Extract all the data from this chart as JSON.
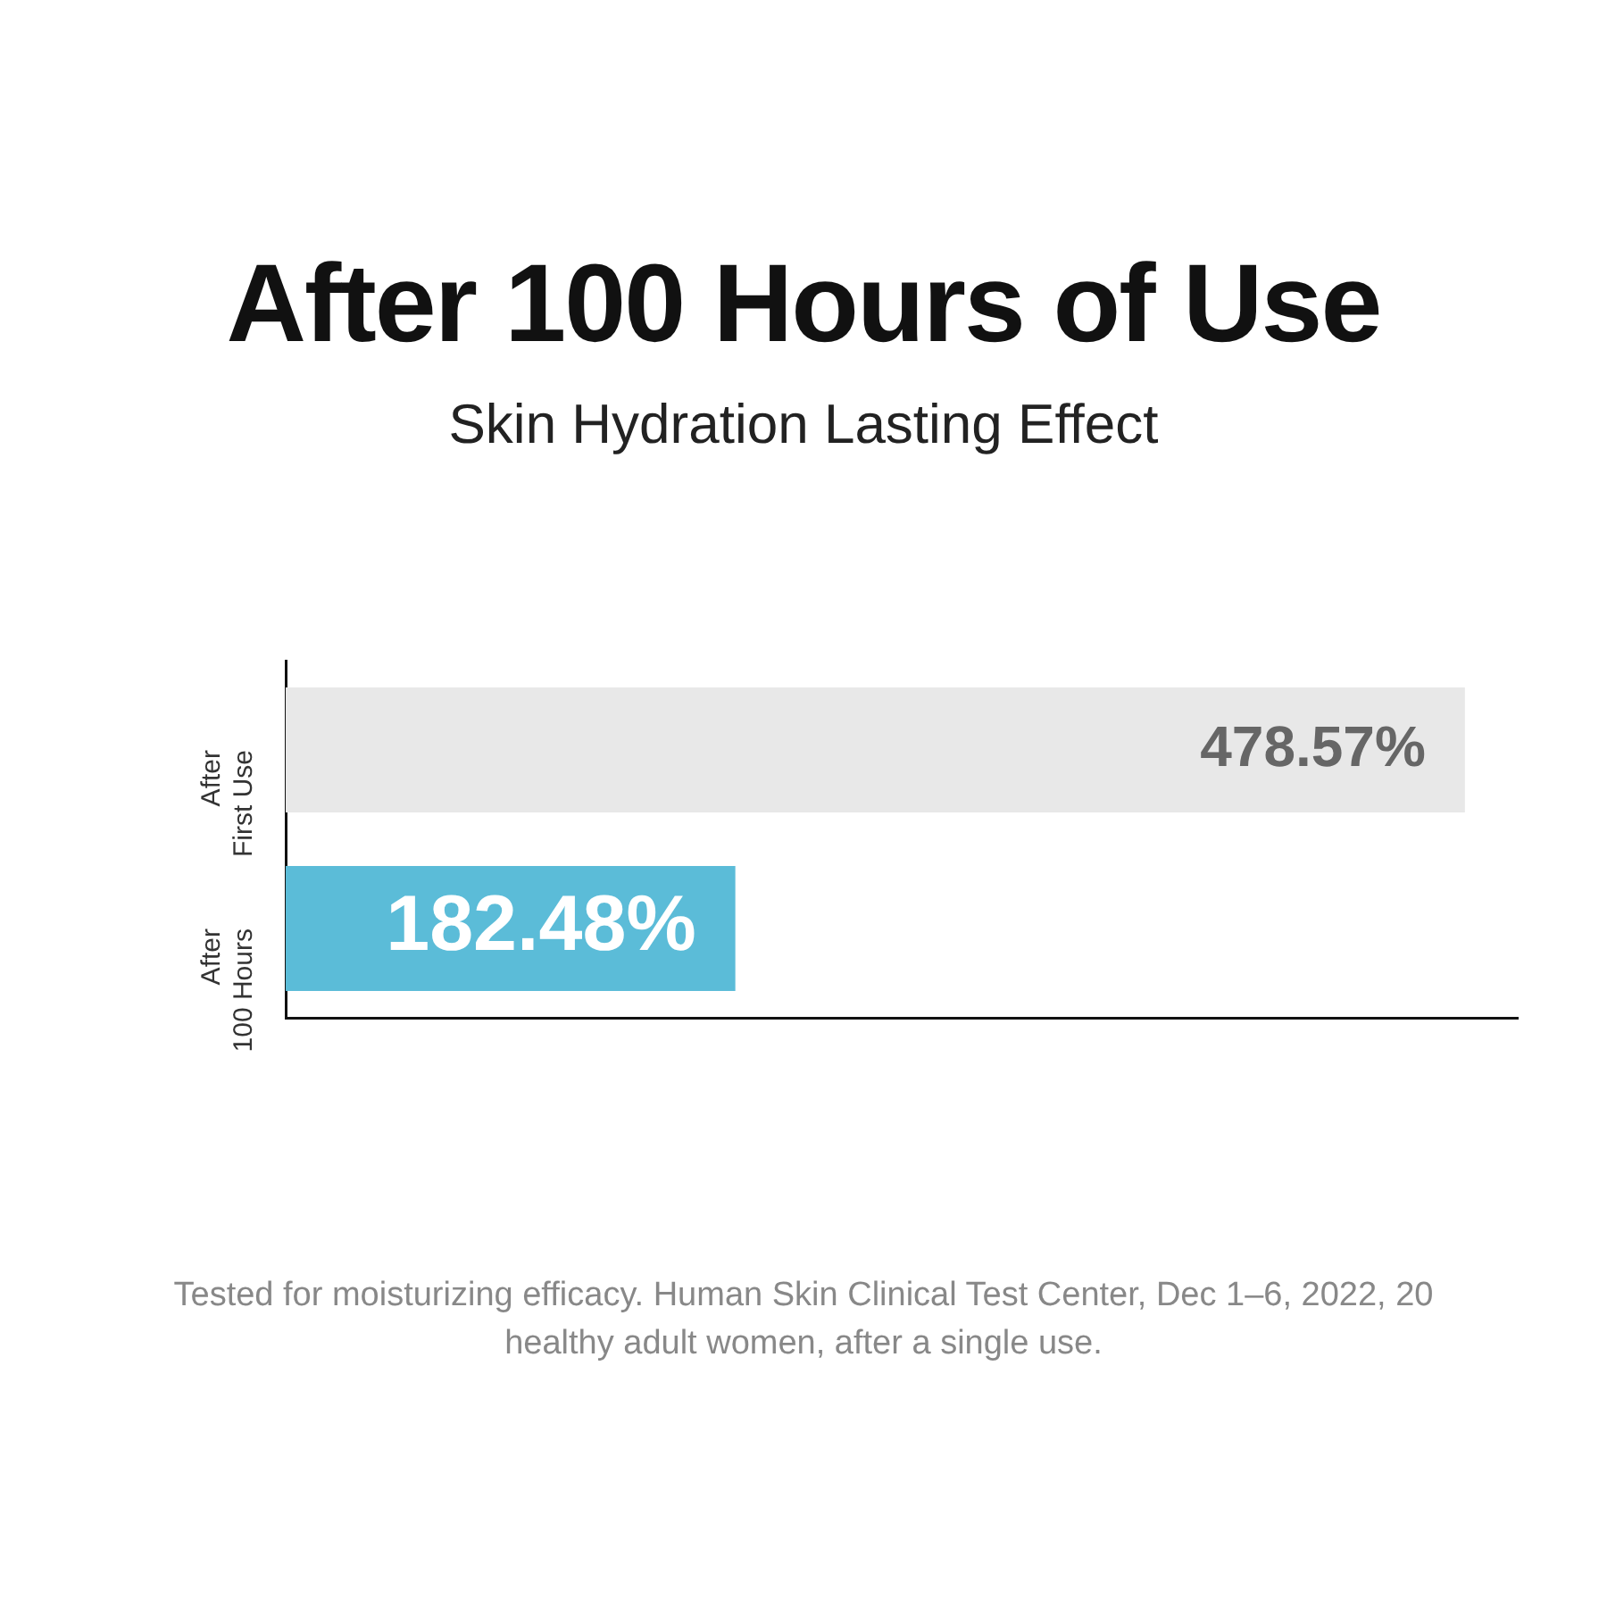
{
  "chart_data": {
    "type": "bar",
    "orientation": "horizontal",
    "title": "After 100 Hours of Use",
    "subtitle": "Skin Hydration Lasting Effect",
    "categories": [
      "After First Use",
      "After 100 Hours"
    ],
    "values": [
      478.57,
      182.48
    ],
    "colors": [
      "#e8e8e8",
      "#5bbcd8"
    ],
    "value_labels": [
      "478.57%",
      "182.48%"
    ],
    "grid": false,
    "legend": false,
    "annotations": [
      "Tested for moisturizing efficacy. Human Skin Clinical Test Center, Dec 1–6, 2022, 20 healthy adult women, after a single use."
    ]
  }
}
